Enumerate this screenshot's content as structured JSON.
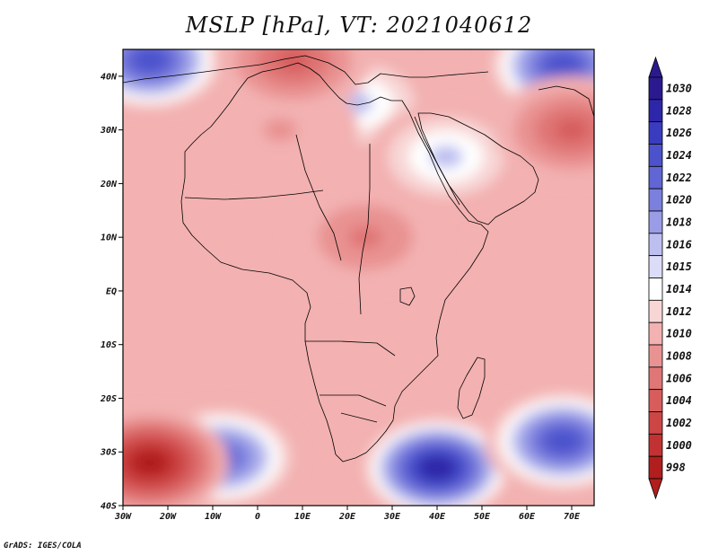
{
  "title": "MSLP [hPa], VT: 2021040612",
  "credit": "GrADS: IGES/COLA",
  "map": {
    "region": "Africa",
    "field": "mean sea level pressure",
    "lon_range": [
      -30,
      75
    ],
    "lat_range": [
      -40,
      45
    ],
    "lat_labels": [
      {
        "lat": 40,
        "text": "40N"
      },
      {
        "lat": 30,
        "text": "30N"
      },
      {
        "lat": 20,
        "text": "20N"
      },
      {
        "lat": 10,
        "text": "10N"
      },
      {
        "lat": 0,
        "text": "EQ"
      },
      {
        "lat": -10,
        "text": "10S"
      },
      {
        "lat": -20,
        "text": "20S"
      },
      {
        "lat": -30,
        "text": "30S"
      },
      {
        "lat": -40,
        "text": "40S"
      }
    ],
    "lon_labels": [
      {
        "lon": -30,
        "text": "30W"
      },
      {
        "lon": -20,
        "text": "20W"
      },
      {
        "lon": -10,
        "text": "10W"
      },
      {
        "lon": 0,
        "text": "0"
      },
      {
        "lon": 10,
        "text": "10E"
      },
      {
        "lon": 20,
        "text": "20E"
      },
      {
        "lon": 30,
        "text": "30E"
      },
      {
        "lon": 40,
        "text": "40E"
      },
      {
        "lon": 50,
        "text": "50E"
      },
      {
        "lon": 60,
        "text": "60E"
      },
      {
        "lon": 70,
        "text": "70E"
      }
    ],
    "background_color": "#f3b1b1",
    "coast_color": "#000000",
    "systems": [
      {
        "name": "high-se-atlantic",
        "lon": -8,
        "lat": -31,
        "value": 1022
      },
      {
        "name": "high-south-africa-east",
        "lon": 40,
        "lat": -33,
        "value": 1028
      },
      {
        "name": "high-south-indian",
        "lon": 68,
        "lat": -28,
        "value": 1024
      },
      {
        "name": "high-north-atlantic",
        "lon": -24,
        "lat": 43,
        "value": 1024
      },
      {
        "name": "high-central-asia",
        "lon": 68,
        "lat": 42,
        "value": 1024
      },
      {
        "name": "high-mediterranean",
        "lon": 22,
        "lat": 35,
        "value": 1016
      },
      {
        "name": "high-arabian",
        "lon": 42,
        "lat": 25,
        "value": 1016
      },
      {
        "name": "low-south-atlantic",
        "lon": -24,
        "lat": -32,
        "value": 998
      },
      {
        "name": "low-sahel",
        "lon": 24,
        "lat": 10,
        "value": 1006
      },
      {
        "name": "low-sahara",
        "lon": 5,
        "lat": 30,
        "value": 1008
      },
      {
        "name": "low-pakistan",
        "lon": 70,
        "lat": 30,
        "value": 1004
      },
      {
        "name": "low-iberia",
        "lon": 8,
        "lat": 43,
        "value": 1004
      }
    ]
  },
  "colorbar": {
    "levels": [
      "1030",
      "1028",
      "1026",
      "1024",
      "1022",
      "1020",
      "1018",
      "1016",
      "1015",
      "1014",
      "1012",
      "1010",
      "1008",
      "1006",
      "1004",
      "1002",
      "1000",
      "998"
    ],
    "colors": [
      "#2b1a8f",
      "#2e26a8",
      "#3a3cbf",
      "#4c52cc",
      "#6265d4",
      "#7b7fdd",
      "#9a9de6",
      "#bdbff0",
      "#dcdcf8",
      "#ffffff",
      "#f8d6d6",
      "#f3b1b1",
      "#e99292",
      "#e07676",
      "#d75d5d",
      "#cd4646",
      "#c33232",
      "#b01e1e"
    ]
  }
}
